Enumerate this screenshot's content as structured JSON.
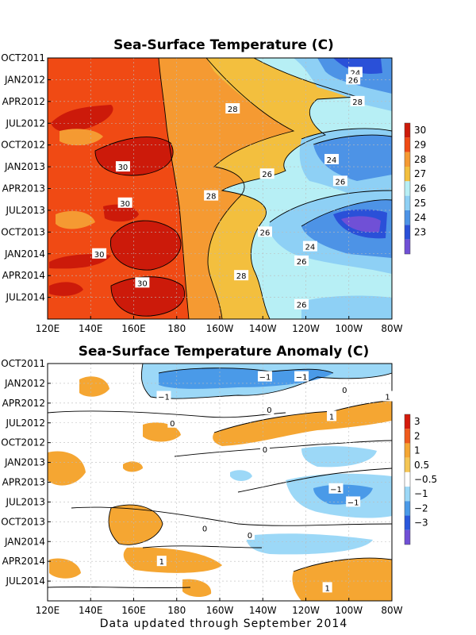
{
  "footer": "Data updated through September 2014",
  "chart_data": [
    {
      "type": "heatmap",
      "title": "Sea-Surface Temperature (C)",
      "x_ticks": [
        "120E",
        "140E",
        "160E",
        "180",
        "160W",
        "140W",
        "120W",
        "100W",
        "80W"
      ],
      "y_ticks": [
        "OCT2011",
        "JAN2012",
        "APR2012",
        "JUL2012",
        "OCT2012",
        "JAN2013",
        "APR2013",
        "JUL2013",
        "OCT2013",
        "JAN2014",
        "APR2014",
        "JUL2014"
      ],
      "legend": {
        "labels": [
          "30",
          "29",
          "28",
          "27",
          "26",
          "25",
          "24",
          "23"
        ],
        "colors": [
          "#cc1a0a",
          "#f04a14",
          "#f59a32",
          "#f3bf3e",
          "#b7eff5",
          "#8ed0f5",
          "#4d93e6",
          "#2a50d8",
          "#7050d6"
        ]
      },
      "contour_labels": [
        {
          "value": "24",
          "x": "97W",
          "y": "DEC2011"
        },
        {
          "value": "26",
          "x": "98W",
          "y": "JAN2012"
        },
        {
          "value": "28",
          "x": "96W",
          "y": "APR2012"
        },
        {
          "value": "28",
          "x": "154W",
          "y": "MAY2012"
        },
        {
          "value": "30",
          "x": "155E",
          "y": "JAN2013"
        },
        {
          "value": "26",
          "x": "138W",
          "y": "FEB2013"
        },
        {
          "value": "24",
          "x": "108W",
          "y": "DEC2012"
        },
        {
          "value": "26",
          "x": "104W",
          "y": "MAR2013"
        },
        {
          "value": "28",
          "x": "164W",
          "y": "MAY2013"
        },
        {
          "value": "30",
          "x": "156E",
          "y": "JUN2013"
        },
        {
          "value": "26",
          "x": "139W",
          "y": "OCT2013"
        },
        {
          "value": "24",
          "x": "118W",
          "y": "DEC2013"
        },
        {
          "value": "30",
          "x": "144E",
          "y": "JAN2014"
        },
        {
          "value": "26",
          "x": "122W",
          "y": "FEB2014"
        },
        {
          "value": "28",
          "x": "150W",
          "y": "APR2014"
        },
        {
          "value": "30",
          "x": "164E",
          "y": "MAY2014"
        },
        {
          "value": "26",
          "x": "122W",
          "y": "AUG2014"
        }
      ]
    },
    {
      "type": "heatmap",
      "title": "Sea-Surface Temperature Anomaly (C)",
      "x_ticks": [
        "120E",
        "140E",
        "160E",
        "180",
        "160W",
        "140W",
        "120W",
        "100W",
        "80W"
      ],
      "y_ticks": [
        "OCT2011",
        "JAN2012",
        "APR2012",
        "JUL2012",
        "OCT2012",
        "JAN2013",
        "APR2013",
        "JUL2013",
        "OCT2013",
        "JAN2014",
        "APR2014",
        "JUL2014"
      ],
      "legend": {
        "labels": [
          "3",
          "2",
          "1",
          "0.5",
          "−0.5",
          "−1",
          "−2",
          "−3"
        ],
        "colors": [
          "#d41a0c",
          "#ef5a1c",
          "#f5a632",
          "#f5c655",
          "#ffffff",
          "#9cd8f7",
          "#4a9ae8",
          "#2a58dc",
          "#7050d6"
        ]
      },
      "contour_labels": [
        {
          "value": "−1",
          "x": "139W",
          "y": "DEC2011"
        },
        {
          "value": "−1",
          "x": "122W",
          "y": "DEC2011"
        },
        {
          "value": "−1",
          "x": "174E",
          "y": "MAR2012"
        },
        {
          "value": "0",
          "x": "102W",
          "y": "FEB2012"
        },
        {
          "value": "1",
          "x": "82W",
          "y": "MAR2012"
        },
        {
          "value": "0",
          "x": "137W",
          "y": "MAY2012"
        },
        {
          "value": "1",
          "x": "108W",
          "y": "JUN2012"
        },
        {
          "value": "0",
          "x": "178E",
          "y": "JUL2012"
        },
        {
          "value": "0",
          "x": "139W",
          "y": "NOV2012"
        },
        {
          "value": "−1",
          "x": "106W",
          "y": "MAY2013"
        },
        {
          "value": "−1",
          "x": "98W",
          "y": "JUL2013"
        },
        {
          "value": "0",
          "x": "167W",
          "y": "NOV2013"
        },
        {
          "value": "0",
          "x": "146W",
          "y": "DEC2013"
        },
        {
          "value": "1",
          "x": "173E",
          "y": "APR2014"
        },
        {
          "value": "1",
          "x": "110W",
          "y": "AUG2014"
        }
      ]
    }
  ]
}
